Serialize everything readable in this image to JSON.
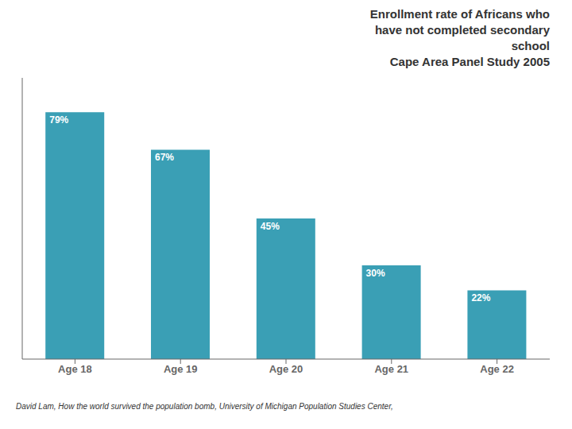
{
  "chart_data": {
    "type": "bar",
    "title": "Enrollment rate of Africans who\nhave not completed secondary\nschool\nCape Area Panel Study 2005",
    "categories": [
      "Age 18",
      "Age 19",
      "Age 20",
      "Age 21",
      "Age 22"
    ],
    "values": [
      79,
      67,
      45,
      30,
      22
    ],
    "value_labels": [
      "79%",
      "67%",
      "45%",
      "30%",
      "22%"
    ],
    "data_labels": true,
    "color": "#3a9fb5",
    "ylim": [
      0,
      90
    ],
    "tick_labels": "x",
    "grid": false,
    "annotations": [
      "David Lam, How the world survived the population bomb, University of Michigan Population Studies Center,"
    ]
  }
}
